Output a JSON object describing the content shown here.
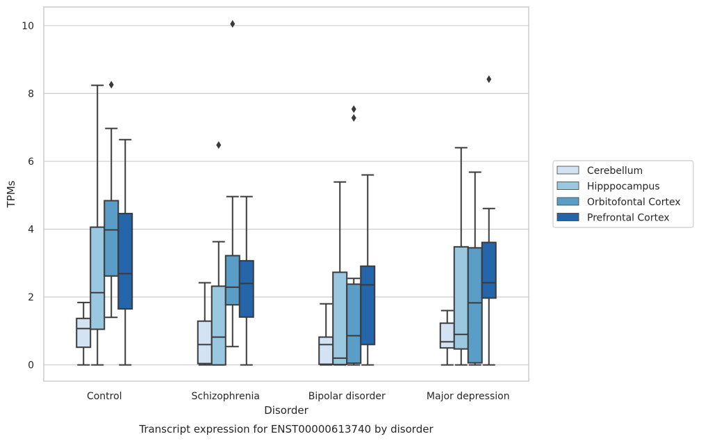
{
  "chart_data": {
    "type": "box",
    "title": "Transcript expression for ENST00000613740 by disorder",
    "xlabel": "Disorder",
    "ylabel": "TPMs",
    "ylim": [
      -0.48,
      10.55
    ],
    "yticks": [
      0,
      2,
      4,
      6,
      8,
      10
    ],
    "grid": true,
    "legend_position": "right",
    "categories": [
      "Control",
      "Schizophrenia",
      "Bipolar disorder",
      "Major depression"
    ],
    "series": [
      {
        "name": "Cerebellum",
        "color": "#d3e3f3",
        "boxes": [
          {
            "whislo": 0,
            "q1": 0.52,
            "med": 1.07,
            "q3": 1.37,
            "whishi": 1.84,
            "fliers": []
          },
          {
            "whislo": 0,
            "q1": 0.04,
            "med": 0.6,
            "q3": 1.29,
            "whishi": 2.42,
            "fliers": []
          },
          {
            "whislo": 0,
            "q1": 0.02,
            "med": 0.6,
            "q3": 0.82,
            "whishi": 1.8,
            "fliers": []
          },
          {
            "whislo": 0,
            "q1": 0.5,
            "med": 0.68,
            "q3": 1.23,
            "whishi": 1.6,
            "fliers": []
          }
        ]
      },
      {
        "name": "Hipppocampus",
        "color": "#9ac8e0",
        "boxes": [
          {
            "whislo": 0,
            "q1": 1.05,
            "med": 2.13,
            "q3": 4.06,
            "whishi": 8.24,
            "fliers": []
          },
          {
            "whislo": 0,
            "q1": 0.0,
            "med": 0.82,
            "q3": 2.32,
            "whishi": 3.63,
            "fliers": [
              6.48
            ]
          },
          {
            "whislo": 0,
            "q1": 0.01,
            "med": 0.2,
            "q3": 2.73,
            "whishi": 5.39,
            "fliers": []
          },
          {
            "whislo": 0,
            "q1": 0.47,
            "med": 0.9,
            "q3": 3.48,
            "whishi": 6.4,
            "fliers": []
          }
        ]
      },
      {
        "name": "Orbitofontal Cortex",
        "color": "#5a9ec8",
        "boxes": [
          {
            "whislo": 1.4,
            "q1": 2.62,
            "med": 3.98,
            "q3": 4.84,
            "whishi": 6.97,
            "fliers": [
              8.26
            ]
          },
          {
            "whislo": 0.54,
            "q1": 1.77,
            "med": 2.29,
            "q3": 3.22,
            "whishi": 4.96,
            "fliers": [
              10.05
            ]
          },
          {
            "whislo": 0,
            "q1": 0.05,
            "med": 0.86,
            "q3": 2.38,
            "whishi": 2.55,
            "fliers": [
              7.28,
              7.54
            ]
          },
          {
            "whislo": 0,
            "q1": 0.06,
            "med": 1.83,
            "q3": 3.45,
            "whishi": 5.68,
            "fliers": []
          }
        ]
      },
      {
        "name": "Prefrontal Cortex",
        "color": "#2565a9",
        "boxes": [
          {
            "whislo": 0,
            "q1": 1.65,
            "med": 2.69,
            "q3": 4.46,
            "whishi": 6.64,
            "fliers": []
          },
          {
            "whislo": 0,
            "q1": 1.41,
            "med": 2.4,
            "q3": 3.07,
            "whishi": 4.96,
            "fliers": []
          },
          {
            "whislo": 0,
            "q1": 0.6,
            "med": 2.36,
            "q3": 2.91,
            "whishi": 5.6,
            "fliers": []
          },
          {
            "whislo": 0,
            "q1": 1.97,
            "med": 2.42,
            "q3": 3.61,
            "whishi": 4.61,
            "fliers": [
              8.42
            ]
          }
        ]
      }
    ]
  }
}
